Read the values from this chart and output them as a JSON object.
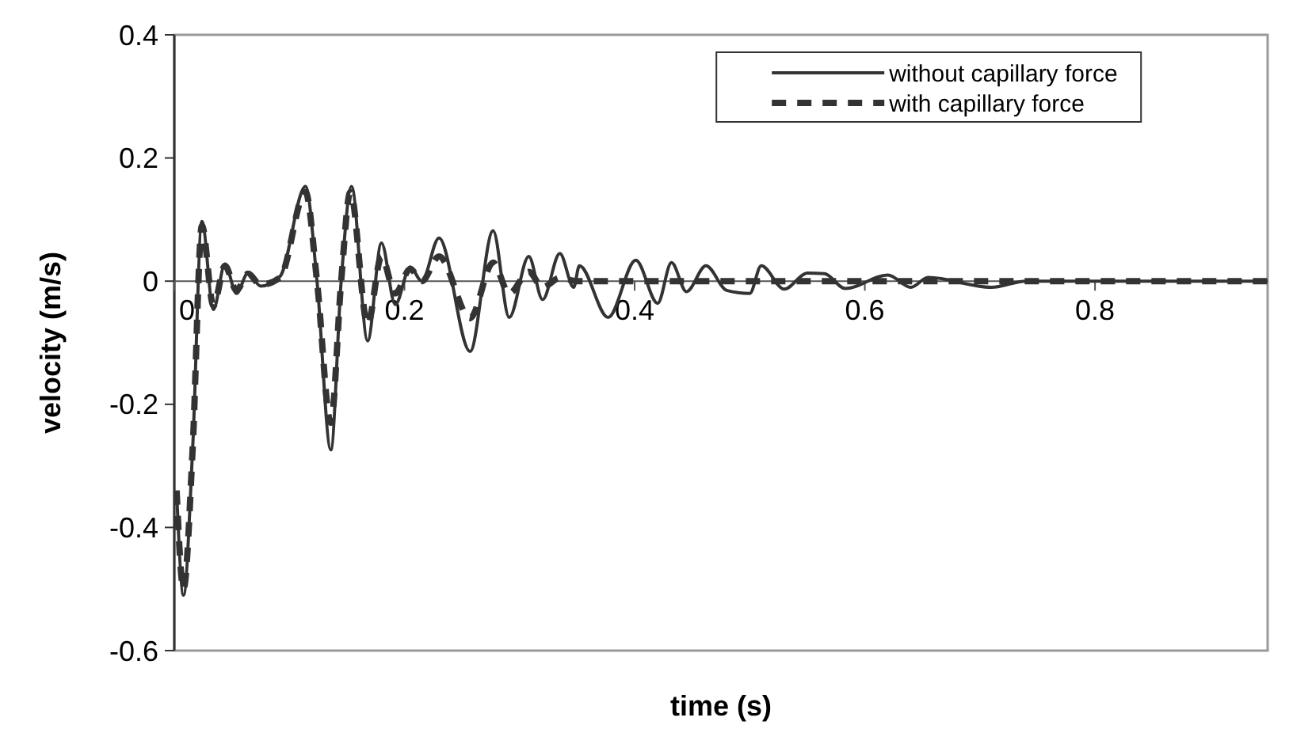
{
  "chart_data": {
    "type": "line",
    "xlabel": "time (s)",
    "ylabel": "velocity (m/s)",
    "xlim": [
      0,
      0.95
    ],
    "xticks": [
      0,
      0.2,
      0.4,
      0.6,
      0.8
    ],
    "ylim": [
      -0.6,
      0.4
    ],
    "yticks": [
      -0.6,
      -0.4,
      -0.2,
      0,
      0.2,
      0.4
    ],
    "grid": false,
    "legend": "top right",
    "marker": "none",
    "series": [
      {
        "name": "without capillary force",
        "color": "#333333",
        "line_style": "solid",
        "x": [
          0.002,
          0.008,
          0.016,
          0.024,
          0.034,
          0.044,
          0.054,
          0.064,
          0.075,
          0.092,
          0.114,
          0.124,
          0.136,
          0.145,
          0.154,
          0.168,
          0.18,
          0.192,
          0.205,
          0.215,
          0.23,
          0.257,
          0.277,
          0.291,
          0.308,
          0.32,
          0.335,
          0.347,
          0.352,
          0.377,
          0.401,
          0.42,
          0.432,
          0.445,
          0.462,
          0.48,
          0.5,
          0.51,
          0.53,
          0.55,
          0.565,
          0.583,
          0.62,
          0.64,
          0.655,
          0.71,
          0.74,
          0.95
        ],
        "values": [
          -0.34,
          -0.51,
          -0.27,
          0.097,
          -0.046,
          0.028,
          -0.02,
          0.013,
          -0.008,
          0.008,
          0.154,
          0,
          -0.274,
          0,
          0.154,
          -0.097,
          0.062,
          -0.038,
          0.023,
          0,
          0.07,
          -0.114,
          0.082,
          -0.059,
          0.04,
          -0.03,
          0.045,
          -0.01,
          0.025,
          -0.059,
          0.034,
          -0.036,
          0.03,
          -0.017,
          0.025,
          -0.015,
          -0.02,
          0.025,
          -0.013,
          0.013,
          0.012,
          -0.012,
          0.01,
          -0.01,
          0.006,
          -0.01,
          0,
          0
        ]
      },
      {
        "name": "with capillary force",
        "color": "#333333",
        "line_style": "dashed",
        "x": [
          0.002,
          0.008,
          0.016,
          0.024,
          0.034,
          0.044,
          0.054,
          0.064,
          0.075,
          0.092,
          0.114,
          0.124,
          0.136,
          0.145,
          0.153,
          0.168,
          0.18,
          0.192,
          0.205,
          0.215,
          0.23,
          0.257,
          0.277,
          0.291,
          0.308,
          0.32,
          0.335,
          0.35,
          0.95
        ],
        "values": [
          -0.34,
          -0.5,
          -0.27,
          0.09,
          -0.04,
          0.025,
          -0.015,
          0.012,
          -0.006,
          0.006,
          0.145,
          0,
          -0.23,
          0,
          0.145,
          -0.07,
          0.04,
          -0.02,
          0.02,
          0,
          0.04,
          -0.06,
          0.03,
          -0.02,
          0.015,
          -0.01,
          0.005,
          0,
          0
        ]
      }
    ]
  }
}
